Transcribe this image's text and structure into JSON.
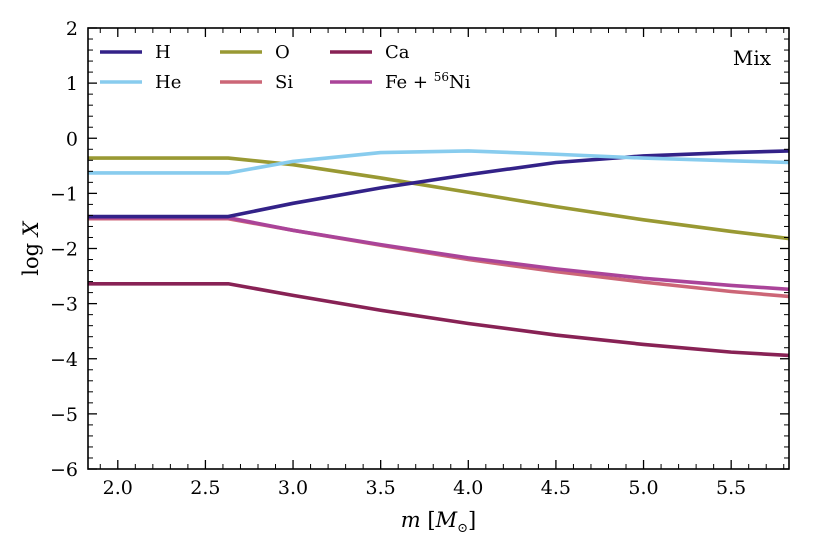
{
  "chart_data": {
    "type": "line",
    "xlabel": {
      "var": "m",
      "unit_open": " [",
      "unit": "M",
      "unit_sub": "⊙",
      "unit_close": "]"
    },
    "ylabel": {
      "prefix": "log ",
      "var": "X"
    },
    "xlim": [
      1.83,
      5.83
    ],
    "ylim": [
      -6,
      2
    ],
    "xticks": [
      2.0,
      2.5,
      3.0,
      3.5,
      4.0,
      4.5,
      5.0,
      5.5
    ],
    "xtick_labels": [
      "2.0",
      "2.5",
      "3.0",
      "3.5",
      "4.0",
      "4.5",
      "5.0",
      "5.5"
    ],
    "yticks": [
      2,
      1,
      0,
      -1,
      -2,
      -3,
      -4,
      -5,
      -6
    ],
    "ytick_labels": [
      "2",
      "1",
      "0",
      "−1",
      "−2",
      "−3",
      "−4",
      "−5",
      "−6"
    ],
    "grid": false,
    "legend_position": "top-left",
    "annotation": "Mix",
    "series": [
      {
        "name": "H",
        "label": "H",
        "color": "#332288",
        "x": [
          1.83,
          2.0,
          2.3,
          2.63,
          3.0,
          3.5,
          4.0,
          4.5,
          5.0,
          5.5,
          5.83
        ],
        "y": [
          -1.42,
          -1.42,
          -1.42,
          -1.42,
          -1.18,
          -0.9,
          -0.66,
          -0.44,
          -0.32,
          -0.26,
          -0.23
        ]
      },
      {
        "name": "He",
        "label": "He",
        "color": "#88ccee",
        "x": [
          1.83,
          2.0,
          2.3,
          2.63,
          3.0,
          3.5,
          4.0,
          4.5,
          5.0,
          5.5,
          5.83
        ],
        "y": [
          -0.63,
          -0.63,
          -0.63,
          -0.63,
          -0.42,
          -0.26,
          -0.23,
          -0.29,
          -0.36,
          -0.41,
          -0.44
        ]
      },
      {
        "name": "O",
        "label": "O",
        "color": "#999933",
        "x": [
          1.83,
          2.0,
          2.3,
          2.63,
          3.0,
          3.5,
          4.0,
          4.5,
          5.0,
          5.5,
          5.83
        ],
        "y": [
          -0.36,
          -0.36,
          -0.36,
          -0.36,
          -0.48,
          -0.72,
          -0.98,
          -1.24,
          -1.48,
          -1.69,
          -1.82
        ]
      },
      {
        "name": "Si",
        "label": "Si",
        "color": "#cc6677",
        "x": [
          1.83,
          2.0,
          2.3,
          2.63,
          3.0,
          3.5,
          4.0,
          4.5,
          5.0,
          5.5,
          5.83
        ],
        "y": [
          -1.46,
          -1.46,
          -1.46,
          -1.46,
          -1.67,
          -1.94,
          -2.2,
          -2.42,
          -2.61,
          -2.78,
          -2.87
        ]
      },
      {
        "name": "Ca",
        "label": "Ca",
        "color": "#882255",
        "x": [
          1.83,
          2.0,
          2.3,
          2.63,
          3.0,
          3.5,
          4.0,
          4.5,
          5.0,
          5.5,
          5.83
        ],
        "y": [
          -2.64,
          -2.64,
          -2.64,
          -2.64,
          -2.85,
          -3.12,
          -3.36,
          -3.57,
          -3.74,
          -3.88,
          -3.94
        ]
      },
      {
        "name": "Fe + 56Ni",
        "label": "Fe + ",
        "label_sup": "56",
        "label_tail": "Ni",
        "color": "#aa4499",
        "x": [
          1.83,
          2.0,
          2.3,
          2.63,
          3.0,
          3.5,
          4.0,
          4.5,
          5.0,
          5.5,
          5.83
        ],
        "y": [
          -1.44,
          -1.44,
          -1.44,
          -1.44,
          -1.67,
          -1.93,
          -2.17,
          -2.37,
          -2.54,
          -2.67,
          -2.74
        ]
      }
    ]
  }
}
